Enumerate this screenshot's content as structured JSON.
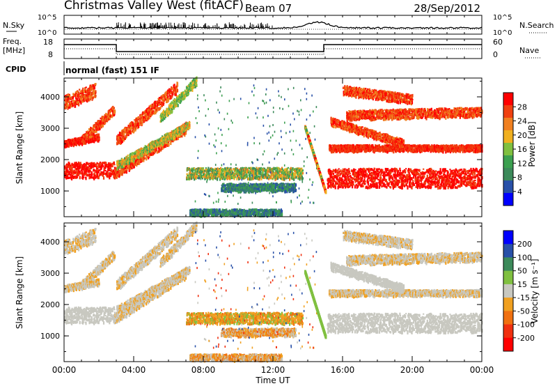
{
  "header": {
    "station": "Christmas Valley West (fitACF)",
    "beam": "Beam 07",
    "date": "28/Sep/2012"
  },
  "noise_panel": {
    "left_label": "N.Sky",
    "right_label": "N.Search",
    "ticks_left": [
      "10^5",
      "10^0"
    ],
    "ticks_right": [
      "10^5",
      "10^0"
    ]
  },
  "freq_panel": {
    "left_label_1": "Freq.",
    "left_label_2": "[MHz]",
    "right_label": "Nave",
    "ticks_left": [
      "18",
      "8"
    ],
    "ticks_right": [
      "60",
      "0"
    ]
  },
  "cpid": {
    "label": "CPID",
    "value": "normal (fast) 151 IF"
  },
  "colors": {
    "power": [
      "#0000ff",
      "#2850a8",
      "#3c8a5a",
      "#3ca050",
      "#80c040",
      "#f0b020",
      "#f08020",
      "#f04010",
      "#ff0000"
    ],
    "velocity": [
      "#0000ff",
      "#2850a8",
      "#3c8a5a",
      "#80c040",
      "#c8c8c0",
      "#f0a020",
      "#f07010",
      "#f03010",
      "#ff0000"
    ]
  },
  "chart_data": [
    {
      "type": "heatmap",
      "name": "power",
      "ylabel": "Slant Range [km]",
      "yticks": [
        1000,
        2000,
        3000,
        4000
      ],
      "ylim": [
        180,
        4600
      ],
      "xlim_hours": [
        0,
        24
      ],
      "colorbar_label": "Power [dB]",
      "colorbar_ticks": [
        "28",
        "24",
        "20",
        "16",
        "12",
        "8",
        "4"
      ],
      "colorbar_range": [
        0,
        32
      ]
    },
    {
      "type": "heatmap",
      "name": "velocity",
      "ylabel": "Slant Range [km]",
      "yticks": [
        1000,
        2000,
        3000,
        4000
      ],
      "ylim": [
        180,
        4600
      ],
      "xlim_hours": [
        0,
        24
      ],
      "colorbar_label": "Velocity [m s⁻¹]",
      "colorbar_ticks": [
        "200",
        "100",
        "50",
        "15",
        "-15",
        "-50",
        "-100",
        "-200"
      ]
    }
  ],
  "time_axis": {
    "xlabel": "Time UT",
    "ticks": [
      "00:00",
      "04:00",
      "08:00",
      "12:00",
      "16:00",
      "20:00",
      "00:00"
    ]
  }
}
